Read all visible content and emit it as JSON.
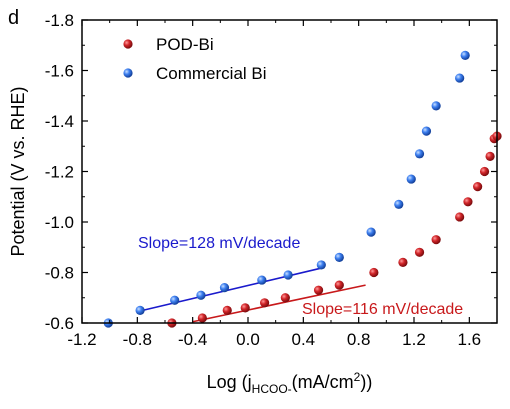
{
  "panel_label": "d",
  "chart_data": {
    "type": "scatter",
    "xlabel": {
      "pre": "Log (j",
      "sub": "HCOO-",
      "mid": "(mA/cm",
      "sup": "2",
      "post": "))"
    },
    "ylabel": "Potential (V vs. RHE)",
    "xlim": [
      -1.2,
      1.8
    ],
    "ylim": [
      -0.6,
      -1.8
    ],
    "x_ticks": [
      -1.2,
      -0.8,
      -0.4,
      0.0,
      0.4,
      0.8,
      1.2,
      1.6
    ],
    "x_tick_labels": [
      "-1.2",
      "-0.8",
      "-0.4",
      "0.0",
      "0.4",
      "0.8",
      "1.2",
      "1.6"
    ],
    "y_ticks": [
      -0.6,
      -0.8,
      -1.0,
      -1.2,
      -1.4,
      -1.6,
      -1.8
    ],
    "y_tick_labels": [
      "-0.6",
      "-0.8",
      "-1.0",
      "-1.2",
      "-1.4",
      "-1.6",
      "-1.8"
    ],
    "legend_position": "top-left",
    "series": [
      {
        "name": "POD-Bi",
        "color": "#c8191b",
        "points": [
          [
            -0.55,
            -0.6
          ],
          [
            -0.33,
            -0.62
          ],
          [
            -0.15,
            -0.65
          ],
          [
            -0.02,
            -0.66
          ],
          [
            0.12,
            -0.68
          ],
          [
            0.27,
            -0.7
          ],
          [
            0.51,
            -0.73
          ],
          [
            0.66,
            -0.75
          ],
          [
            0.91,
            -0.8
          ],
          [
            1.12,
            -0.84
          ],
          [
            1.24,
            -0.88
          ],
          [
            1.36,
            -0.93
          ],
          [
            1.53,
            -1.02
          ],
          [
            1.59,
            -1.08
          ],
          [
            1.66,
            -1.14
          ],
          [
            1.71,
            -1.2
          ],
          [
            1.75,
            -1.26
          ],
          [
            1.78,
            -1.33
          ],
          [
            1.8,
            -1.34
          ]
        ]
      },
      {
        "name": "Commercial Bi",
        "color": "#2b6bd8",
        "points": [
          [
            -1.01,
            -0.6
          ],
          [
            -0.78,
            -0.65
          ],
          [
            -0.53,
            -0.69
          ],
          [
            -0.34,
            -0.71
          ],
          [
            -0.17,
            -0.74
          ],
          [
            0.1,
            -0.77
          ],
          [
            0.29,
            -0.79
          ],
          [
            0.53,
            -0.83
          ],
          [
            0.66,
            -0.86
          ],
          [
            0.89,
            -0.96
          ],
          [
            1.09,
            -1.07
          ],
          [
            1.18,
            -1.17
          ],
          [
            1.24,
            -1.27
          ],
          [
            1.29,
            -1.36
          ],
          [
            1.36,
            -1.46
          ],
          [
            1.53,
            -1.57
          ],
          [
            1.57,
            -1.66
          ]
        ]
      }
    ],
    "fits": [
      {
        "label": "Slope=116 mV/decade",
        "color": "#c8191b",
        "x": [
          -0.4,
          0.85
        ],
        "y": [
          -0.605,
          -0.75
        ]
      },
      {
        "label": "Slope=128 mV/decade",
        "color": "#1a1acc",
        "x": [
          -0.8,
          0.55
        ],
        "y": [
          -0.645,
          -0.82
        ]
      }
    ]
  }
}
